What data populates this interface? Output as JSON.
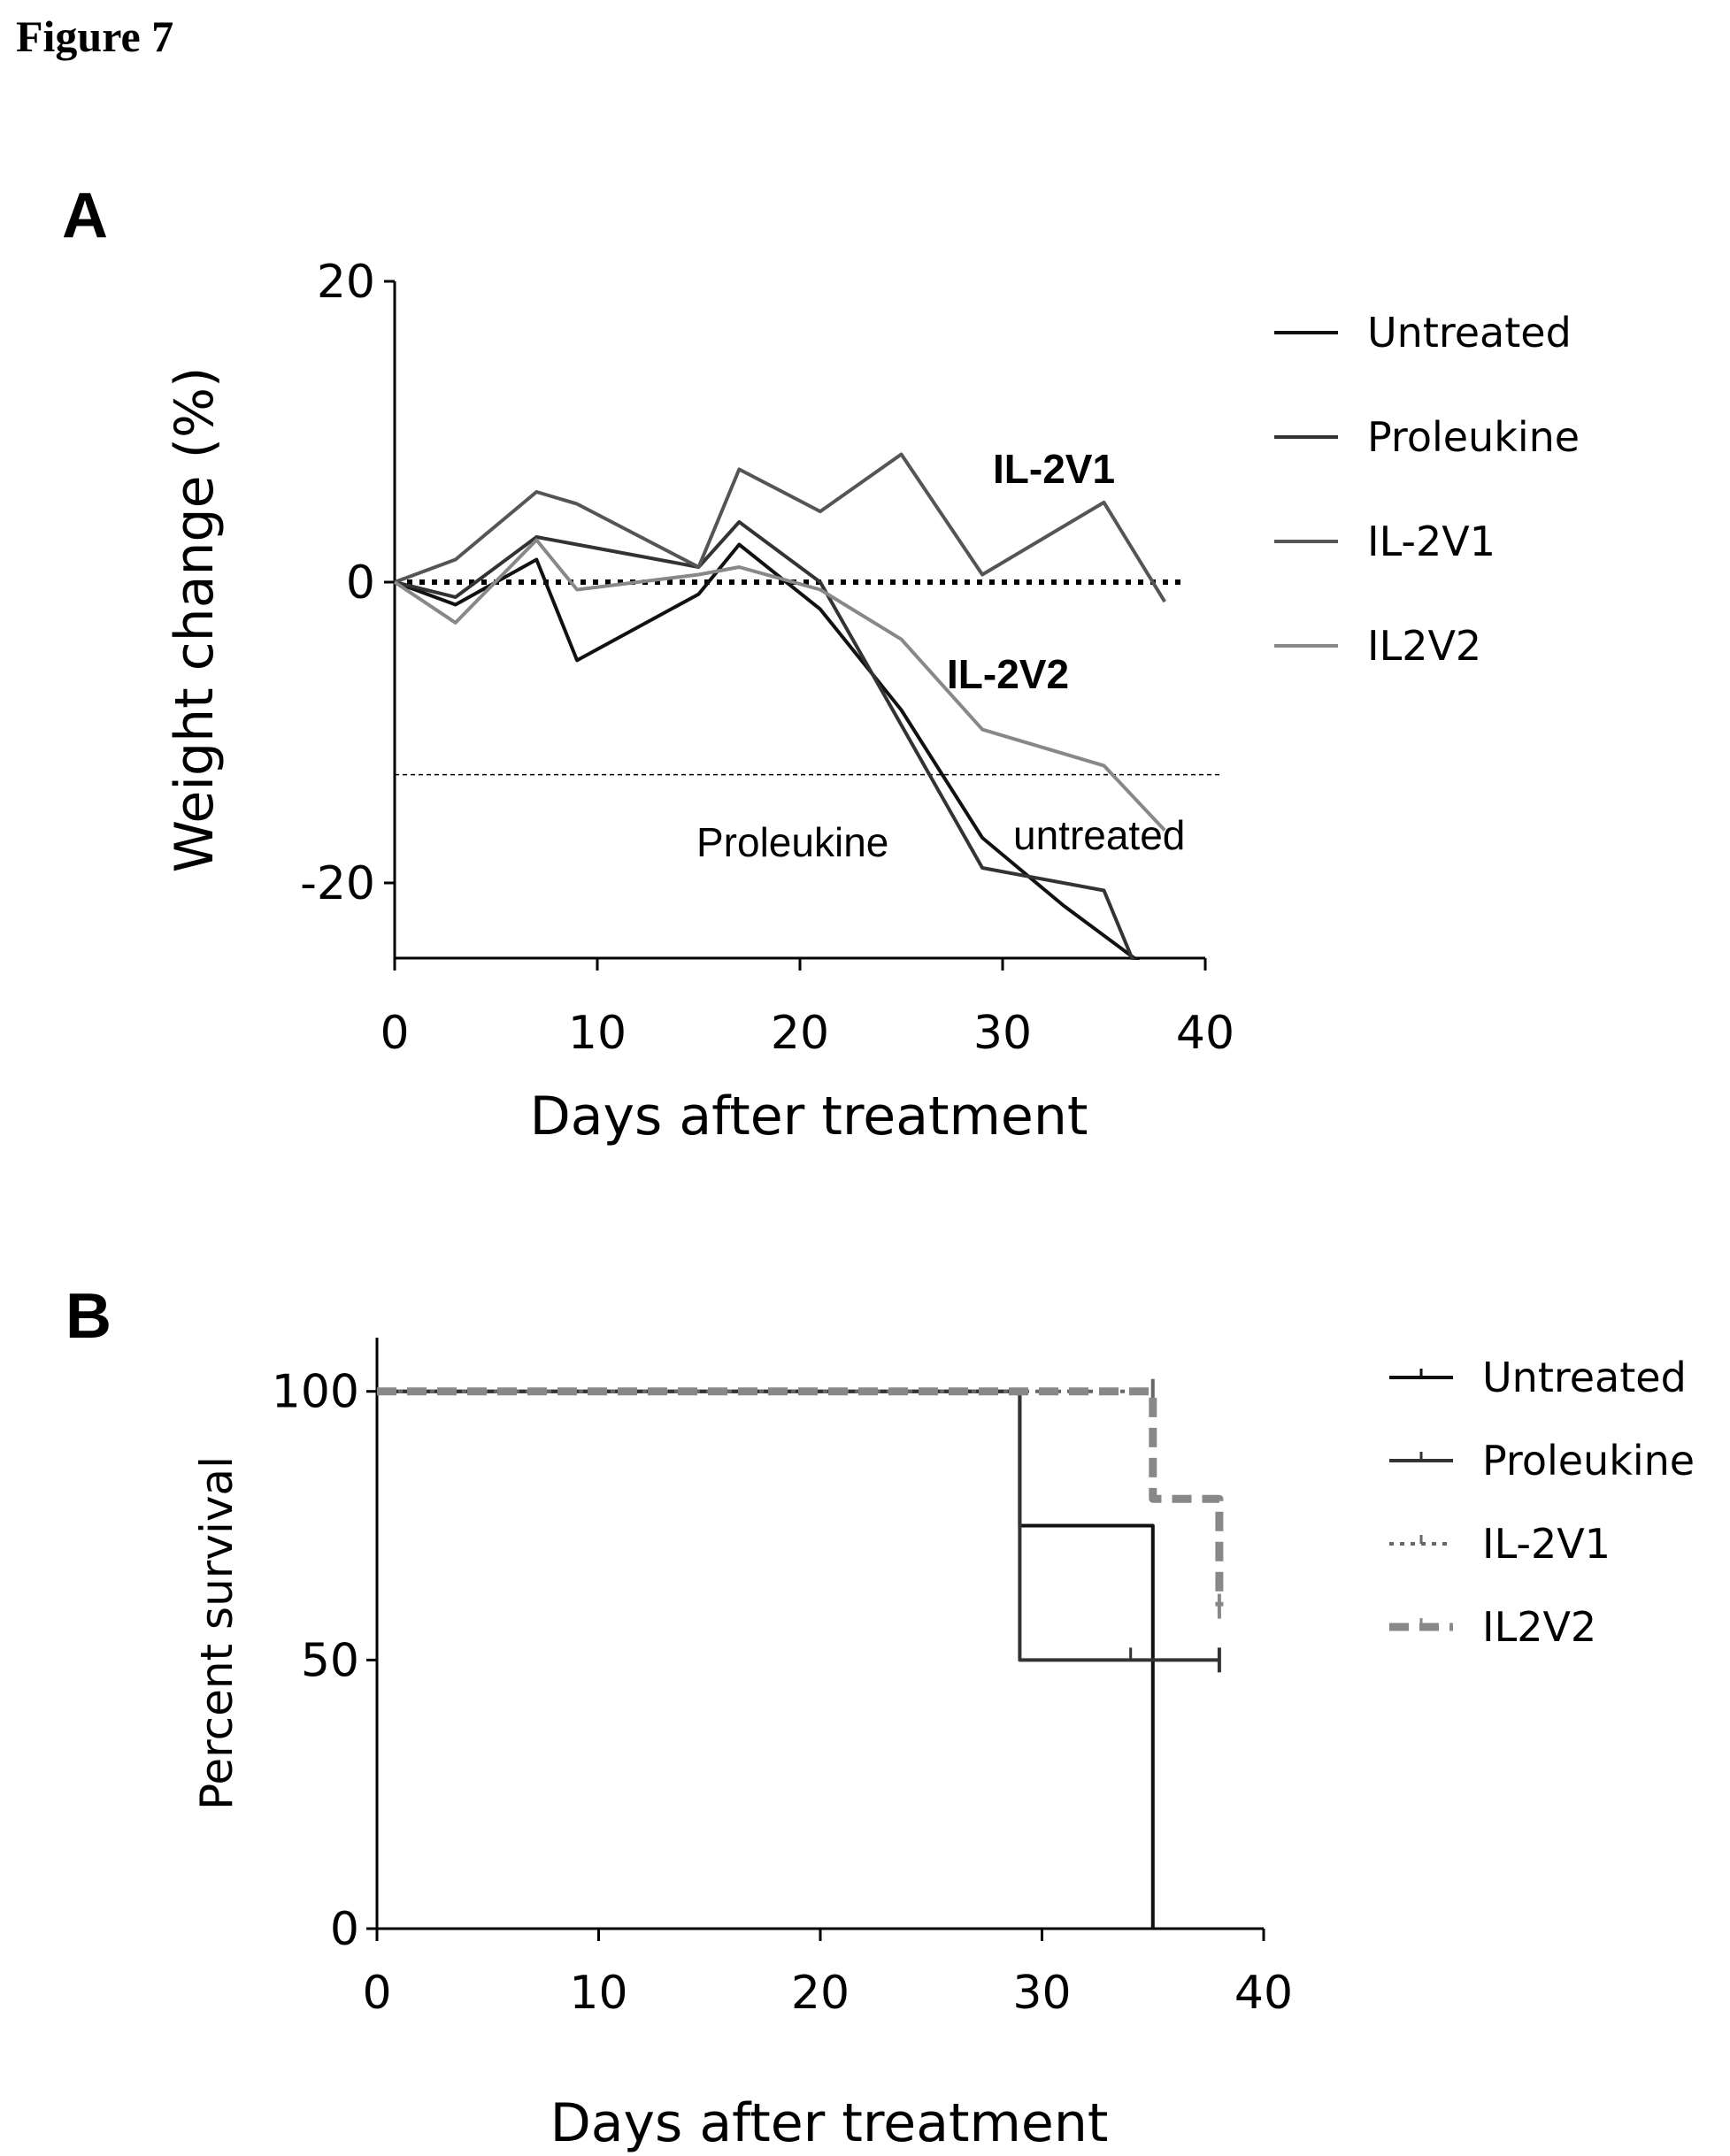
{
  "figure_title": "Figure 7",
  "chart_data": [
    {
      "panel": "A",
      "type": "line",
      "xlabel": "Days after treatment",
      "ylabel": "Weight change (%)",
      "xlim": [
        0,
        40
      ],
      "ylim": [
        -25,
        20
      ],
      "xticks": [
        0,
        10,
        20,
        30,
        40
      ],
      "yticks": [
        -20,
        0,
        20
      ],
      "grid": false,
      "legend_position": "right",
      "reference_lines": [
        {
          "y": 0,
          "style": "dotted"
        },
        {
          "y": -12.8,
          "style": "dashed-thin"
        }
      ],
      "series": [
        {
          "name": "Untreated",
          "color": "#111111",
          "x": [
            0,
            3,
            7,
            9,
            15,
            17,
            21,
            25,
            29,
            33,
            37
          ],
          "y": [
            0,
            -1.5,
            1.5,
            -5.2,
            -0.8,
            2.5,
            -1.8,
            -8.5,
            -17,
            -21.5,
            -25.5
          ]
        },
        {
          "name": "Proleukine",
          "color": "#333333",
          "x": [
            0,
            3,
            7,
            9,
            15,
            17,
            21,
            25,
            29,
            35,
            37
          ],
          "y": [
            0,
            -1,
            3,
            2.5,
            1,
            4,
            0,
            -9.5,
            -19,
            -20.5,
            -27
          ]
        },
        {
          "name": "IL-2V1",
          "color": "#555555",
          "x": [
            0,
            3,
            7,
            9,
            15,
            17,
            21,
            25,
            29,
            35,
            38
          ],
          "y": [
            0,
            1.5,
            6,
            5.2,
            1,
            7.5,
            4.7,
            8.5,
            0.5,
            5.3,
            -1.3
          ]
        },
        {
          "name": "IL2V2",
          "color": "#888888",
          "x": [
            0,
            3,
            7,
            9,
            15,
            17,
            21,
            25,
            29,
            35,
            38
          ],
          "y": [
            0,
            -2.7,
            2.8,
            -0.5,
            0.5,
            1,
            -0.5,
            -3.8,
            -9.8,
            -12.2,
            -16.5
          ]
        }
      ],
      "annotations": [
        {
          "text": "IL-2V1",
          "bold": true
        },
        {
          "text": "IL-2V2",
          "bold": true
        },
        {
          "text": "Proleukine",
          "bold": false
        },
        {
          "text": "untreated",
          "bold": false
        }
      ]
    },
    {
      "panel": "B",
      "type": "line",
      "subtype": "step",
      "xlabel": "Days after treatment",
      "ylabel": "Percent survival",
      "xlim": [
        0,
        40
      ],
      "ylim": [
        0,
        110
      ],
      "xticks": [
        0,
        10,
        20,
        30,
        40
      ],
      "yticks": [
        0,
        50,
        100
      ],
      "grid": false,
      "legend_position": "right",
      "series": [
        {
          "name": "Untreated",
          "color": "#111111",
          "style": "solid",
          "x": [
            0,
            29,
            29,
            35,
            35
          ],
          "y": [
            100,
            100,
            75,
            75,
            0
          ]
        },
        {
          "name": "Proleukine",
          "color": "#333333",
          "style": "solid",
          "x": [
            0,
            29,
            29,
            38
          ],
          "y": [
            100,
            100,
            50,
            50
          ]
        },
        {
          "name": "IL-2V1",
          "color": "#666666",
          "style": "dotted",
          "x": [
            0,
            35
          ],
          "y": [
            100,
            100
          ]
        },
        {
          "name": "IL2V2",
          "color": "#888888",
          "style": "dashed",
          "x": [
            0,
            35,
            35,
            38,
            38
          ],
          "y": [
            100,
            100,
            80,
            80,
            60
          ]
        }
      ]
    }
  ]
}
